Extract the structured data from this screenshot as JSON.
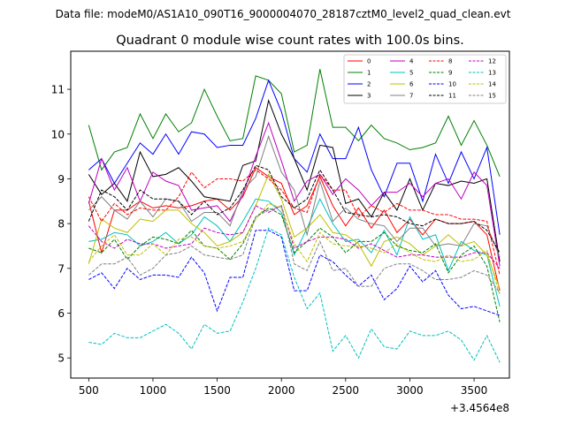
{
  "header": {
    "datafile": "Data file: modeM0/AS1A10_090T16_9000004070_28187cztM0_level2_quad_clean.evt"
  },
  "chart_data": {
    "type": "line",
    "title": "Quadrant 0 module wise count rates with 100.0s bins.",
    "xlabel": "",
    "ylabel": "",
    "x_offset_label": "+3.4564e8",
    "xlim": [
      360,
      3775
    ],
    "ylim": [
      4.55,
      11.85
    ],
    "xticks": [
      500,
      1000,
      1500,
      2000,
      2500,
      3000,
      3500
    ],
    "xtick_labels": [
      "500",
      "1000",
      "1500",
      "2000",
      "2500",
      "3000",
      "3500"
    ],
    "yticks": [
      5,
      6,
      7,
      8,
      9,
      10,
      11
    ],
    "ytick_labels": [
      "5",
      "6",
      "7",
      "8",
      "9",
      "10",
      "11"
    ],
    "legend_position": "top-right",
    "x": [
      500,
      600,
      700,
      800,
      900,
      1000,
      1100,
      1200,
      1300,
      1400,
      1500,
      1600,
      1700,
      1800,
      1900,
      2000,
      2100,
      2200,
      2300,
      2400,
      2500,
      2600,
      2700,
      2800,
      2900,
      3000,
      3100,
      3200,
      3300,
      3400,
      3500,
      3600,
      3700
    ],
    "series": [
      {
        "name": "0",
        "color": "#ff0000",
        "dash": "solid",
        "values": [
          8.5,
          7.35,
          8.3,
          8.3,
          8.5,
          8.35,
          8.4,
          8.35,
          8.4,
          8.5,
          8.55,
          8.3,
          8.6,
          9.25,
          9.05,
          8.9,
          8.2,
          8.4,
          9.05,
          8.4,
          7.95,
          8.35,
          7.9,
          8.3,
          7.8,
          8.1,
          7.75,
          8.1,
          8.0,
          8.0,
          8.05,
          7.75,
          6.5
        ]
      },
      {
        "name": "1",
        "color": "#008000",
        "dash": "solid",
        "values": [
          10.2,
          9.2,
          9.6,
          9.7,
          10.45,
          9.9,
          10.45,
          10.05,
          10.25,
          11.0,
          10.4,
          9.85,
          9.9,
          11.3,
          11.2,
          10.9,
          9.6,
          9.75,
          11.45,
          10.15,
          10.15,
          9.85,
          10.2,
          9.9,
          9.8,
          9.65,
          9.7,
          9.8,
          10.4,
          9.75,
          10.3,
          9.75,
          9.05
        ]
      },
      {
        "name": "2",
        "color": "#0000ff",
        "dash": "solid",
        "values": [
          9.2,
          9.45,
          8.9,
          9.35,
          9.8,
          9.55,
          10.0,
          9.55,
          10.05,
          10.0,
          9.7,
          9.75,
          9.75,
          10.35,
          11.2,
          10.5,
          9.45,
          9.15,
          10.0,
          9.45,
          9.45,
          10.15,
          9.2,
          8.6,
          9.35,
          9.35,
          8.5,
          9.55,
          8.9,
          9.6,
          9.0,
          9.7,
          7.75
        ]
      },
      {
        "name": "3",
        "color": "#000000",
        "dash": "solid",
        "values": [
          9.1,
          8.65,
          8.9,
          8.5,
          9.6,
          9.05,
          9.1,
          9.25,
          8.95,
          8.6,
          8.55,
          8.5,
          9.3,
          9.4,
          10.75,
          10.0,
          9.45,
          8.75,
          9.75,
          9.7,
          8.45,
          8.55,
          8.15,
          8.7,
          8.3,
          9.0,
          8.3,
          8.9,
          8.85,
          8.95,
          8.9,
          9.0,
          7.15
        ]
      },
      {
        "name": "4",
        "color": "#bf00bf",
        "dash": "solid",
        "values": [
          8.45,
          9.45,
          8.75,
          9.25,
          8.5,
          9.15,
          8.95,
          8.85,
          8.3,
          8.35,
          8.4,
          8.05,
          8.65,
          9.5,
          10.25,
          9.4,
          8.5,
          8.95,
          9.1,
          8.65,
          9.0,
          8.75,
          8.4,
          8.7,
          8.7,
          8.9,
          8.6,
          8.9,
          9.0,
          8.55,
          9.15,
          8.85,
          7.05
        ]
      },
      {
        "name": "5",
        "color": "#00bfbf",
        "dash": "solid",
        "values": [
          7.6,
          7.65,
          7.8,
          7.75,
          7.5,
          7.6,
          7.8,
          7.55,
          7.75,
          8.15,
          7.95,
          7.6,
          8.05,
          8.55,
          8.5,
          8.25,
          7.3,
          7.9,
          8.55,
          8.0,
          7.6,
          7.65,
          7.35,
          7.85,
          7.3,
          8.15,
          7.65,
          7.75,
          6.95,
          7.6,
          7.4,
          7.3,
          6.15
        ]
      },
      {
        "name": "6",
        "color": "#bfbf00",
        "dash": "solid",
        "values": [
          7.1,
          8.1,
          7.9,
          7.8,
          8.1,
          8.05,
          8.3,
          8.3,
          8.0,
          7.8,
          7.5,
          7.6,
          7.8,
          8.4,
          9.1,
          8.55,
          7.7,
          7.9,
          8.2,
          7.8,
          7.75,
          7.55,
          7.05,
          7.6,
          7.7,
          7.55,
          7.3,
          7.5,
          7.75,
          7.5,
          7.6,
          7.3,
          6.55
        ]
      },
      {
        "name": "7",
        "color": "#808080",
        "dash": "solid",
        "values": [
          8.3,
          8.6,
          8.3,
          8.1,
          8.5,
          8.15,
          8.55,
          8.5,
          8.05,
          8.25,
          8.25,
          7.95,
          8.75,
          9.05,
          9.95,
          9.15,
          8.75,
          7.75,
          8.95,
          8.05,
          8.35,
          8.1,
          8.0,
          7.95,
          7.6,
          7.9,
          7.9,
          7.5,
          7.55,
          7.5,
          8.0,
          7.95,
          7.25
        ]
      },
      {
        "name": "8",
        "color": "#ff0000",
        "dash": "dashed",
        "values": [
          8.6,
          8.05,
          8.45,
          8.2,
          8.35,
          8.3,
          8.3,
          8.6,
          9.15,
          8.8,
          9.0,
          9.0,
          8.95,
          9.2,
          9.0,
          8.75,
          8.35,
          8.25,
          9.1,
          8.75,
          8.75,
          8.15,
          8.4,
          8.25,
          8.45,
          8.3,
          8.3,
          8.2,
          8.2,
          8.1,
          8.1,
          8.05,
          6.85
        ]
      },
      {
        "name": "9",
        "color": "#008000",
        "dash": "dashed",
        "values": [
          7.45,
          7.35,
          7.65,
          7.2,
          7.5,
          7.7,
          7.65,
          7.55,
          7.85,
          7.5,
          7.45,
          7.2,
          7.55,
          8.15,
          8.35,
          8.2,
          7.35,
          7.6,
          7.9,
          7.7,
          7.35,
          7.6,
          7.6,
          7.8,
          7.5,
          7.4,
          7.35,
          7.55,
          6.9,
          7.3,
          7.5,
          7.05,
          5.8
        ]
      },
      {
        "name": "10",
        "color": "#0000ff",
        "dash": "dashed",
        "values": [
          6.75,
          6.9,
          6.55,
          7.0,
          6.75,
          6.85,
          6.85,
          6.8,
          7.25,
          6.9,
          6.05,
          6.8,
          6.8,
          7.85,
          7.85,
          7.7,
          6.5,
          6.5,
          7.3,
          7.15,
          6.85,
          6.6,
          6.85,
          6.3,
          6.55,
          7.05,
          6.7,
          6.95,
          6.4,
          6.1,
          6.15,
          6.05,
          5.95
        ]
      },
      {
        "name": "11",
        "color": "#000000",
        "dash": "dashed",
        "values": [
          8.05,
          8.75,
          8.6,
          8.3,
          8.75,
          8.55,
          8.55,
          8.5,
          8.2,
          8.5,
          8.2,
          8.35,
          8.75,
          9.3,
          9.2,
          8.6,
          8.35,
          8.55,
          9.2,
          8.75,
          8.25,
          8.2,
          8.15,
          8.2,
          8.15,
          8.0,
          7.95,
          8.1,
          8.0,
          8.0,
          8.05,
          7.85,
          7.35
        ]
      },
      {
        "name": "12",
        "color": "#bf00bf",
        "dash": "dashed",
        "values": [
          7.95,
          7.6,
          7.45,
          7.65,
          7.55,
          7.55,
          7.45,
          7.5,
          7.55,
          7.9,
          7.8,
          7.75,
          7.8,
          8.4,
          8.25,
          8.4,
          7.45,
          7.6,
          7.7,
          7.7,
          7.65,
          7.45,
          7.55,
          7.4,
          7.25,
          7.3,
          7.3,
          7.25,
          7.25,
          7.25,
          7.35,
          7.35,
          7.0
        ]
      },
      {
        "name": "13",
        "color": "#00bfbf",
        "dash": "dashed",
        "values": [
          5.35,
          5.3,
          5.55,
          5.45,
          5.45,
          5.6,
          5.75,
          5.55,
          5.2,
          5.75,
          5.55,
          5.6,
          6.25,
          7.0,
          7.9,
          7.75,
          6.8,
          6.1,
          6.45,
          5.15,
          5.5,
          5.0,
          5.65,
          5.25,
          5.2,
          5.6,
          5.5,
          5.5,
          5.6,
          5.4,
          4.95,
          5.5,
          4.9
        ]
      },
      {
        "name": "14",
        "color": "#bfbf00",
        "dash": "dashed",
        "values": [
          7.15,
          7.5,
          7.75,
          7.3,
          7.3,
          7.55,
          7.3,
          7.65,
          7.7,
          7.5,
          7.45,
          7.5,
          7.6,
          8.1,
          8.45,
          8.35,
          7.55,
          7.15,
          7.8,
          7.55,
          7.5,
          7.5,
          7.45,
          7.35,
          7.55,
          7.35,
          7.2,
          7.15,
          7.3,
          7.15,
          7.2,
          7.4,
          6.4
        ]
      },
      {
        "name": "15",
        "color": "#808080",
        "dash": "dashed",
        "values": [
          6.85,
          7.1,
          7.1,
          7.25,
          6.85,
          7.0,
          7.3,
          7.35,
          7.5,
          7.3,
          7.25,
          7.2,
          7.3,
          8.15,
          8.3,
          8.4,
          7.1,
          6.95,
          7.6,
          6.95,
          7.0,
          6.6,
          6.6,
          7.0,
          7.1,
          7.1,
          6.95,
          6.75,
          6.75,
          6.8,
          6.95,
          6.85,
          6.45
        ]
      }
    ]
  }
}
